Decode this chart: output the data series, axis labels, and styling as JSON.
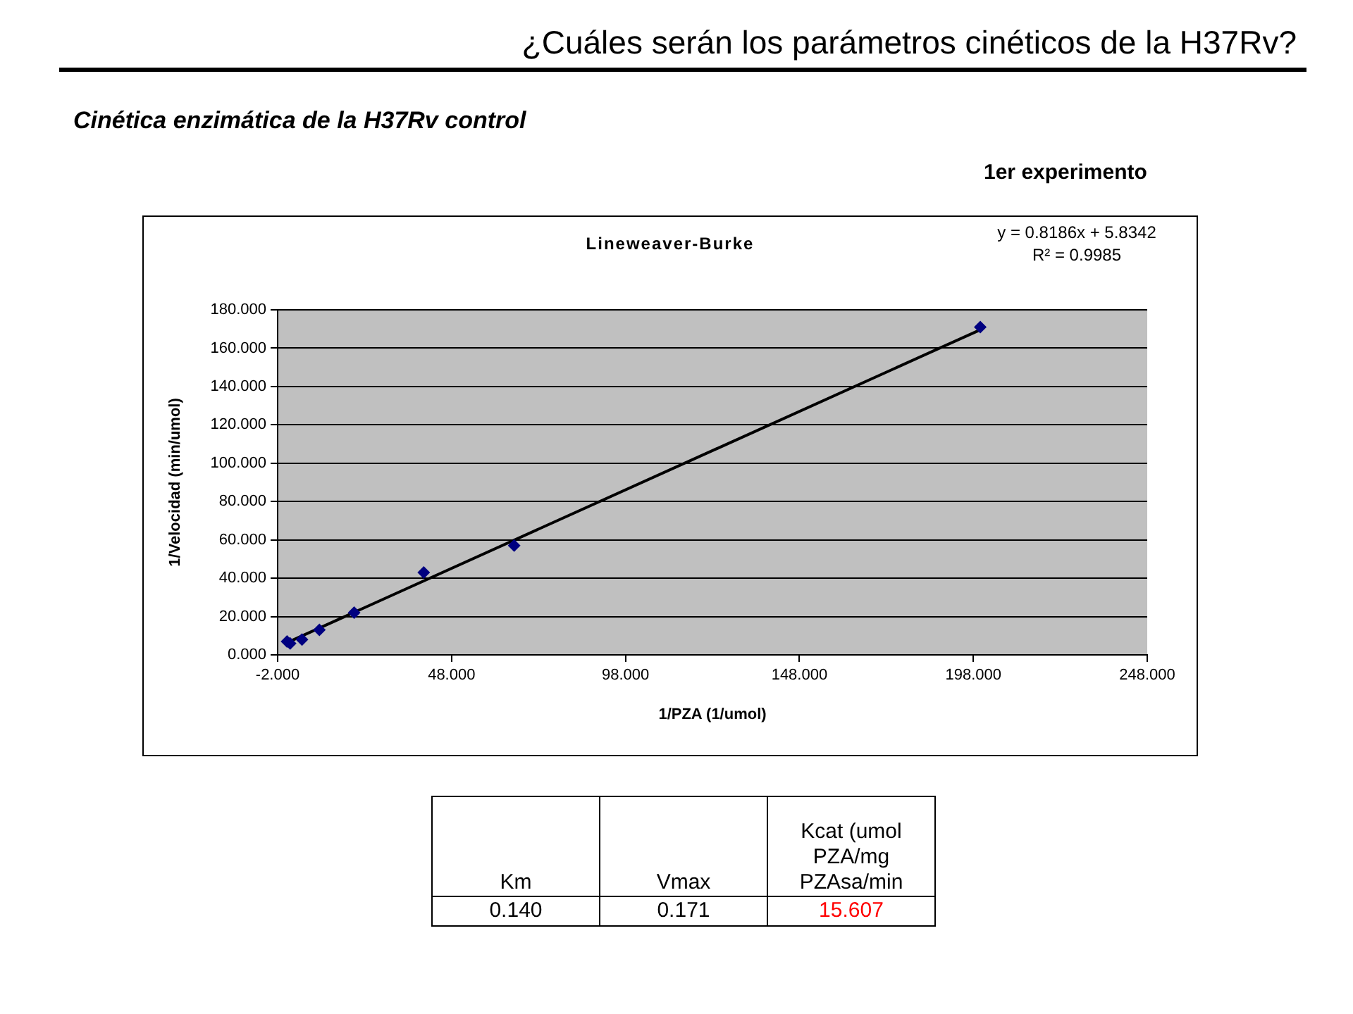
{
  "chart_data": [
    {
      "type": "scatter",
      "title": "Lineweaver-Burke",
      "xlabel": "1/PZA (1/umol)",
      "ylabel": "1/Velocidad (min/umol)",
      "annotations": [
        "¿Cuáles serán los parámetros cinéticos de la H37Rv?",
        "Cinética enzimática de la H37Rv control",
        "1er experimento",
        "y = 0.8186x + 5.8342",
        "R² = 0.9985"
      ],
      "series": [
        {
          "type": "scatter",
          "color": "#000080",
          "x": [
            0.7,
            1.6,
            5,
            10,
            20,
            40,
            66,
            200
          ],
          "values": [
            7,
            6,
            8,
            13,
            22,
            43,
            57,
            171
          ]
        },
        {
          "type": "line",
          "color": "#000000",
          "x": [
            0.7,
            200
          ],
          "values": [
            6.4,
            169.6
          ],
          "marker": "none"
        }
      ],
      "xlim": [
        -2,
        248
      ],
      "xticks": [
        {
          "value": -2,
          "label": "-2.000"
        },
        {
          "value": 48,
          "label": "48.000"
        },
        {
          "value": 98,
          "label": "98.000"
        },
        {
          "value": 148,
          "label": "148.000"
        },
        {
          "value": 198,
          "label": "198.000"
        },
        {
          "value": 248,
          "label": "248.000"
        }
      ],
      "ylim": [
        0,
        180
      ],
      "yticks": [
        {
          "value": 0,
          "label": "0.000"
        },
        {
          "value": 20,
          "label": "20.000"
        },
        {
          "value": 40,
          "label": "40.000"
        },
        {
          "value": 60,
          "label": "60.000"
        },
        {
          "value": 80,
          "label": "80.000"
        },
        {
          "value": 100,
          "label": "100.000"
        },
        {
          "value": 120,
          "label": "120.000"
        },
        {
          "value": 140,
          "label": "140.000"
        },
        {
          "value": 160,
          "label": "160.000"
        },
        {
          "value": 180,
          "label": "180.000"
        }
      ],
      "grid": "y",
      "legend": false,
      "marker": "diamond"
    },
    {
      "type": "other",
      "annotations": [
        "Km",
        "Vmax",
        "Kcat (umol PZA/mg PZAsa/min",
        "0.140",
        "0.171",
        "15.607"
      ],
      "colors": [
        "#000000",
        "#000000",
        "#000000",
        "#000000",
        "#000000",
        "#ff0000"
      ]
    }
  ]
}
